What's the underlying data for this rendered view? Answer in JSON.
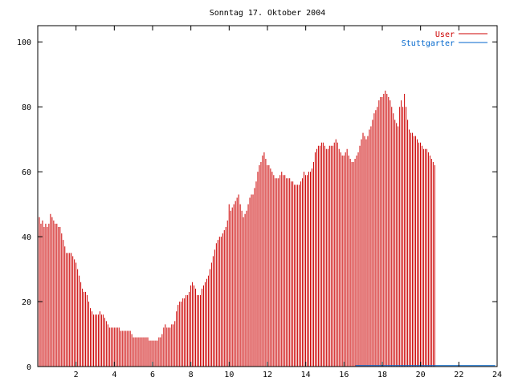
{
  "chart_data": {
    "type": "bar",
    "title": "Sonntag 17. Oktober 2004",
    "xlabel": "",
    "ylabel": "",
    "xlim": [
      0,
      24
    ],
    "ylim": [
      0,
      105
    ],
    "x_ticks": [
      2,
      4,
      6,
      8,
      10,
      12,
      14,
      16,
      18,
      20,
      22,
      24
    ],
    "y_ticks": [
      0,
      20,
      40,
      60,
      80,
      100
    ],
    "grid": false,
    "legend_position": "top-right",
    "series": [
      {
        "name": "User",
        "color": "#cc0000",
        "x_start": 0,
        "x_step": 0.0833,
        "values": [
          48,
          46,
          44,
          45,
          43,
          44,
          43,
          44,
          47,
          46,
          45,
          44,
          44,
          43,
          43,
          41,
          39,
          37,
          35,
          35,
          35,
          35,
          34,
          33,
          32,
          30,
          28,
          26,
          24,
          23,
          23,
          22,
          20,
          18,
          17,
          16,
          16,
          16,
          16,
          17,
          16,
          16,
          15,
          14,
          13,
          12,
          12,
          12,
          12,
          12,
          12,
          12,
          11,
          11,
          11,
          11,
          11,
          11,
          11,
          10,
          9,
          9,
          9,
          9,
          9,
          9,
          9,
          9,
          9,
          9,
          8,
          8,
          8,
          8,
          8,
          8,
          9,
          9,
          10,
          12,
          13,
          12,
          12,
          12,
          13,
          13,
          14,
          17,
          19,
          20,
          20,
          21,
          21,
          22,
          22,
          23,
          25,
          26,
          25,
          24,
          22,
          22,
          22,
          24,
          25,
          26,
          27,
          28,
          30,
          32,
          34,
          36,
          38,
          39,
          40,
          40,
          41,
          42,
          43,
          45,
          50,
          48,
          49,
          50,
          51,
          52,
          53,
          50,
          48,
          46,
          47,
          48,
          50,
          52,
          53,
          53,
          55,
          57,
          60,
          62,
          63,
          65,
          66,
          64,
          62,
          62,
          61,
          60,
          59,
          58,
          58,
          58,
          59,
          60,
          59,
          59,
          58,
          58,
          58,
          57,
          57,
          56,
          56,
          56,
          56,
          57,
          58,
          60,
          59,
          59,
          60,
          60,
          61,
          63,
          66,
          67,
          68,
          68,
          69,
          69,
          68,
          67,
          67,
          68,
          68,
          68,
          69,
          70,
          69,
          67,
          66,
          65,
          65,
          66,
          67,
          65,
          64,
          63,
          63,
          64,
          65,
          66,
          68,
          70,
          72,
          71,
          70,
          71,
          73,
          74,
          76,
          78,
          79,
          80,
          82,
          83,
          83,
          84,
          85,
          84,
          83,
          82,
          80,
          78,
          76,
          75,
          74,
          80,
          82,
          80,
          84,
          80,
          76,
          73,
          72,
          72,
          71,
          71,
          70,
          69,
          69,
          68,
          67,
          67,
          67,
          66,
          65,
          64,
          63,
          62
        ]
      },
      {
        "name": "Stuttgarter",
        "color": "#0066cc",
        "x_start": 0,
        "x_step": 0.0833,
        "values_constant": 0.3,
        "values_note": ""
      }
    ]
  }
}
